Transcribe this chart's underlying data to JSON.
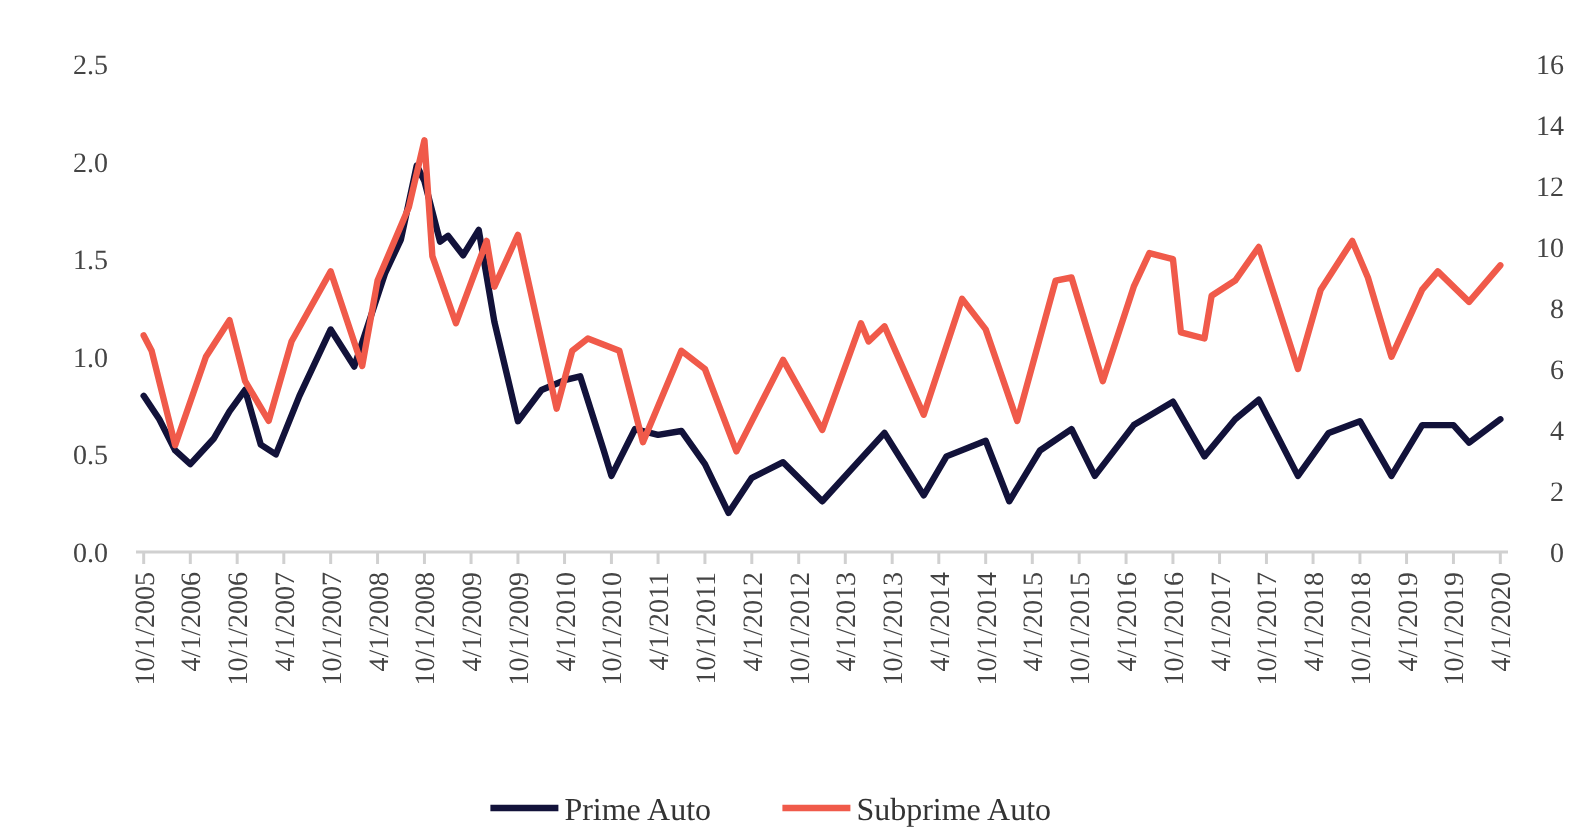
{
  "chart_data": {
    "type": "line",
    "legend": "bottom",
    "grid": false,
    "marker": "none",
    "line_style": "solid",
    "xlim": [
      "2005-09",
      "2020-05"
    ],
    "xticks": [
      {
        "value": "2005-10",
        "label": "10/1/2005"
      },
      {
        "value": "2006-04",
        "label": "4/1/2006"
      },
      {
        "value": "2006-10",
        "label": "10/1/2006"
      },
      {
        "value": "2007-04",
        "label": "4/1/2007"
      },
      {
        "value": "2007-10",
        "label": "10/1/2007"
      },
      {
        "value": "2008-04",
        "label": "4/1/2008"
      },
      {
        "value": "2008-10",
        "label": "10/1/2008"
      },
      {
        "value": "2009-04",
        "label": "4/1/2009"
      },
      {
        "value": "2009-10",
        "label": "10/1/2009"
      },
      {
        "value": "2010-04",
        "label": "4/1/2010"
      },
      {
        "value": "2010-10",
        "label": "10/1/2010"
      },
      {
        "value": "2011-04",
        "label": "4/1/2011"
      },
      {
        "value": "2011-10",
        "label": "10/1/2011"
      },
      {
        "value": "2012-04",
        "label": "4/1/2012"
      },
      {
        "value": "2012-10",
        "label": "10/1/2012"
      },
      {
        "value": "2013-04",
        "label": "4/1/2013"
      },
      {
        "value": "2013-10",
        "label": "10/1/2013"
      },
      {
        "value": "2014-04",
        "label": "4/1/2014"
      },
      {
        "value": "2014-10",
        "label": "10/1/2014"
      },
      {
        "value": "2015-04",
        "label": "4/1/2015"
      },
      {
        "value": "2015-10",
        "label": "10/1/2015"
      },
      {
        "value": "2016-04",
        "label": "4/1/2016"
      },
      {
        "value": "2016-10",
        "label": "10/1/2016"
      },
      {
        "value": "2017-04",
        "label": "4/1/2017"
      },
      {
        "value": "2017-10",
        "label": "10/1/2017"
      },
      {
        "value": "2018-04",
        "label": "4/1/2018"
      },
      {
        "value": "2018-10",
        "label": "10/1/2018"
      },
      {
        "value": "2019-04",
        "label": "4/1/2019"
      },
      {
        "value": "2019-10",
        "label": "10/1/2019"
      },
      {
        "value": "2020-04",
        "label": "4/1/2020"
      }
    ],
    "ylim": [
      0,
      2.5
    ],
    "yticks": [
      {
        "value": 0,
        "label": "0.0"
      },
      {
        "value": 0.5,
        "label": "0.5"
      },
      {
        "value": 1,
        "label": "1.0"
      },
      {
        "value": 1.5,
        "label": "1.5"
      },
      {
        "value": 2,
        "label": "2.0"
      },
      {
        "value": 2.5,
        "label": "2.5"
      }
    ],
    "y2lim": [
      0,
      16
    ],
    "y2ticks": [
      0,
      2,
      4,
      6,
      8,
      10,
      12,
      14,
      16
    ],
    "series": [
      {
        "name": "Prime Auto",
        "color": "#12123a",
        "x": [
          "2005-10",
          "2005-12",
          "2006-02",
          "2006-04",
          "2006-07",
          "2006-09",
          "2006-11",
          "2007-01",
          "2007-03",
          "2007-06",
          "2007-10",
          "2008-01",
          "2008-05",
          "2008-07",
          "2008-09",
          "2008-10",
          "2008-12",
          "2009-01",
          "2009-03",
          "2009-05",
          "2009-07",
          "2009-10",
          "2010-01",
          "2010-04",
          "2010-06",
          "2010-09",
          "2010-10",
          "2011-01",
          "2011-04",
          "2011-07",
          "2011-10",
          "2012-01",
          "2012-04",
          "2012-08",
          "2013-01",
          "2013-09",
          "2014-02",
          "2014-05",
          "2014-10",
          "2015-01",
          "2015-05",
          "2015-09",
          "2015-12",
          "2016-05",
          "2016-10",
          "2017-02",
          "2017-06",
          "2017-09",
          "2018-02",
          "2018-06",
          "2018-10",
          "2019-02",
          "2019-06",
          "2019-10",
          "2019-12",
          "2020-04"
        ],
        "values": [
          0.8,
          0.68,
          0.52,
          0.45,
          0.58,
          0.72,
          0.83,
          0.55,
          0.5,
          0.8,
          1.14,
          0.95,
          1.43,
          1.6,
          1.98,
          1.9,
          1.59,
          1.62,
          1.52,
          1.65,
          1.18,
          0.67,
          0.83,
          0.88,
          0.9,
          0.52,
          0.39,
          0.63,
          0.6,
          0.62,
          0.45,
          0.2,
          0.38,
          0.46,
          0.26,
          0.61,
          0.29,
          0.49,
          0.57,
          0.26,
          0.52,
          0.63,
          0.39,
          0.65,
          0.77,
          0.49,
          0.68,
          0.78,
          0.39,
          0.61,
          0.67,
          0.39,
          0.65,
          0.65,
          0.56,
          0.68
        ]
      },
      {
        "name": "Subprime Auto",
        "color": "#f05a4a",
        "axis": "y2",
        "x": [
          "2005-10",
          "2005-11",
          "2006-02",
          "2006-06",
          "2006-09",
          "2006-11",
          "2007-02",
          "2007-05",
          "2007-10",
          "2008-02",
          "2008-04",
          "2008-08",
          "2008-10",
          "2008-11",
          "2009-02",
          "2009-06",
          "2009-07",
          "2009-10",
          "2010-03",
          "2010-05",
          "2010-07",
          "2010-11",
          "2011-02",
          "2011-07",
          "2011-10",
          "2012-02",
          "2012-08",
          "2013-01",
          "2013-06",
          "2013-07",
          "2013-09",
          "2014-02",
          "2014-07",
          "2014-10",
          "2015-02",
          "2015-07",
          "2015-09",
          "2016-01",
          "2016-05",
          "2016-07",
          "2016-10",
          "2016-11",
          "2017-02",
          "2017-03",
          "2017-06",
          "2017-09",
          "2018-02",
          "2018-05",
          "2018-09",
          "2018-11",
          "2019-02",
          "2019-06",
          "2019-08",
          "2019-12",
          "2020-04"
        ],
        "values": [
          7.1,
          6.6,
          3.5,
          6.4,
          7.6,
          5.6,
          4.3,
          6.9,
          9.2,
          6.1,
          8.9,
          11.3,
          13.5,
          9.7,
          7.5,
          10.2,
          8.7,
          10.4,
          4.7,
          6.6,
          7.0,
          6.6,
          3.6,
          6.6,
          6.0,
          3.3,
          6.3,
          4.0,
          7.5,
          6.9,
          7.4,
          4.5,
          8.3,
          7.3,
          4.3,
          8.9,
          9.0,
          5.6,
          8.7,
          9.8,
          9.6,
          7.2,
          7.0,
          8.4,
          8.9,
          10.0,
          6.0,
          8.6,
          10.2,
          9.0,
          6.4,
          8.6,
          9.2,
          8.2,
          9.4
        ]
      }
    ]
  }
}
